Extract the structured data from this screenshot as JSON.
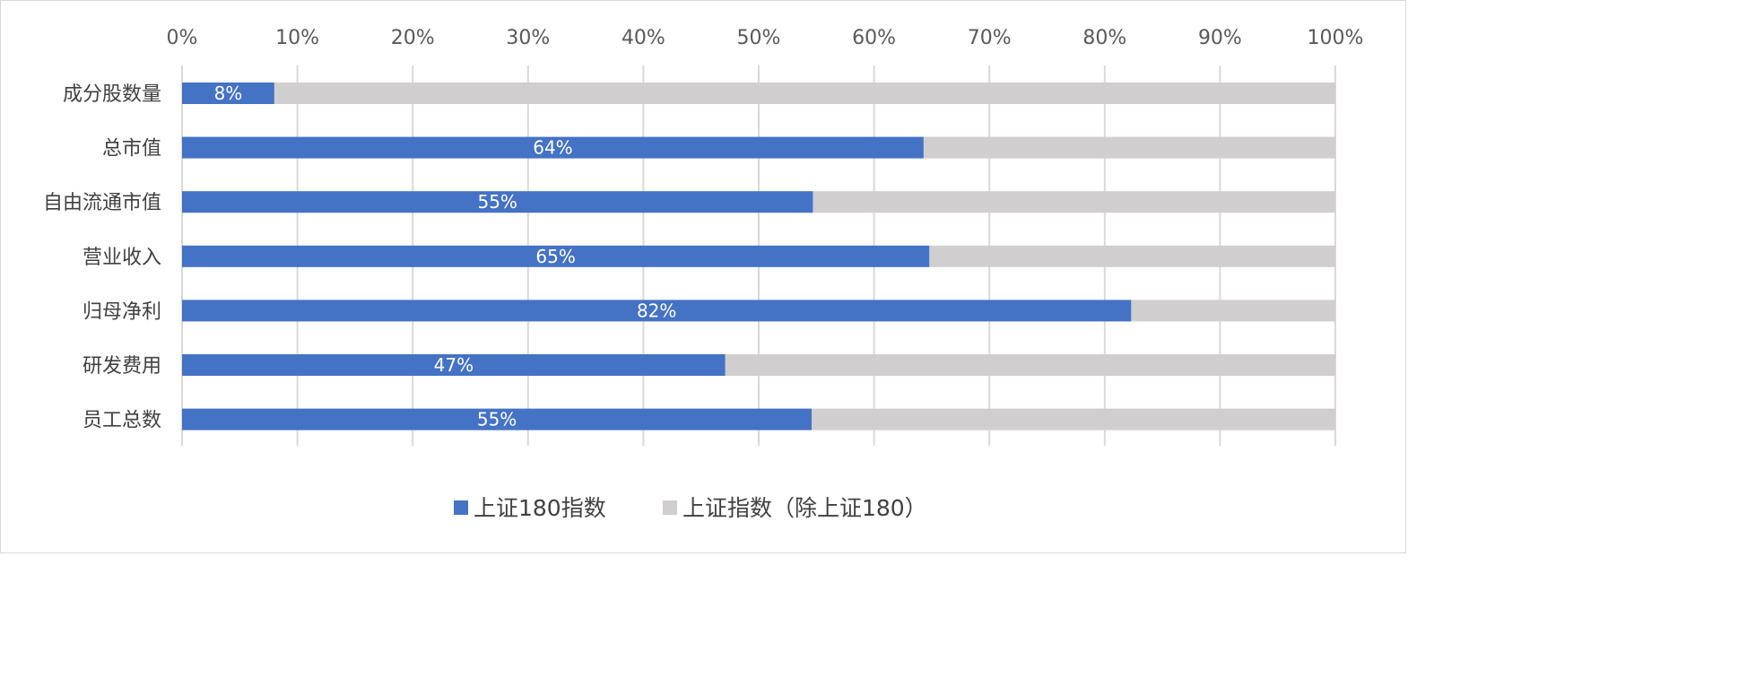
{
  "chart_data": {
    "type": "bar",
    "orientation": "horizontal",
    "stacked": "percent",
    "title": "",
    "xlabel": "",
    "ylabel": "",
    "xlim": [
      0,
      100
    ],
    "x_ticks": [
      "0%",
      "10%",
      "20%",
      "30%",
      "40%",
      "50%",
      "60%",
      "70%",
      "80%",
      "90%",
      "100%"
    ],
    "x_axis_position": "top",
    "grid": true,
    "legend_position": "bottom",
    "categories": [
      "成分股数量",
      "总市值",
      "自由流通市值",
      "营业收入",
      "归母净利",
      "研发费用",
      "员工总数"
    ],
    "series": [
      {
        "name": "上证180指数",
        "color": "#4472c4",
        "values": [
          8,
          64.3,
          54.7,
          64.8,
          82.3,
          47.1,
          54.6
        ],
        "data_labels": [
          "8%",
          "64%",
          "55%",
          "65%",
          "82%",
          "47%",
          "55%"
        ]
      },
      {
        "name": "上证指数（除上证180）",
        "color": "#d0cece",
        "values": [
          92,
          35.7,
          45.3,
          35.2,
          17.7,
          52.9,
          45.4
        ]
      }
    ]
  }
}
